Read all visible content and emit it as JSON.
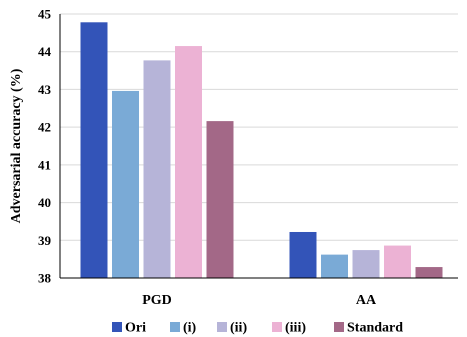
{
  "chart_data": {
    "type": "bar",
    "categories": [
      "PGD",
      "AA"
    ],
    "series": [
      {
        "name": "Ori",
        "color": "#3354b8",
        "values": [
          44.78,
          39.22
        ]
      },
      {
        "name": "(i)",
        "color": "#7aaad6",
        "values": [
          42.96,
          38.62
        ]
      },
      {
        "name": "(ii)",
        "color": "#b6b4d8",
        "values": [
          43.77,
          38.74
        ]
      },
      {
        "name": "(iii)",
        "color": "#ecb2d4",
        "values": [
          44.15,
          38.86
        ]
      },
      {
        "name": "Standard",
        "color": "#a36887",
        "values": [
          42.16,
          38.29
        ]
      }
    ],
    "ylabel": "Adversarial accuracy (%)",
    "xlabel": "",
    "ylim": [
      38,
      45
    ],
    "yticks": [
      38,
      39,
      40,
      41,
      42,
      43,
      44,
      45
    ],
    "grid": true,
    "legend_position": "bottom"
  }
}
